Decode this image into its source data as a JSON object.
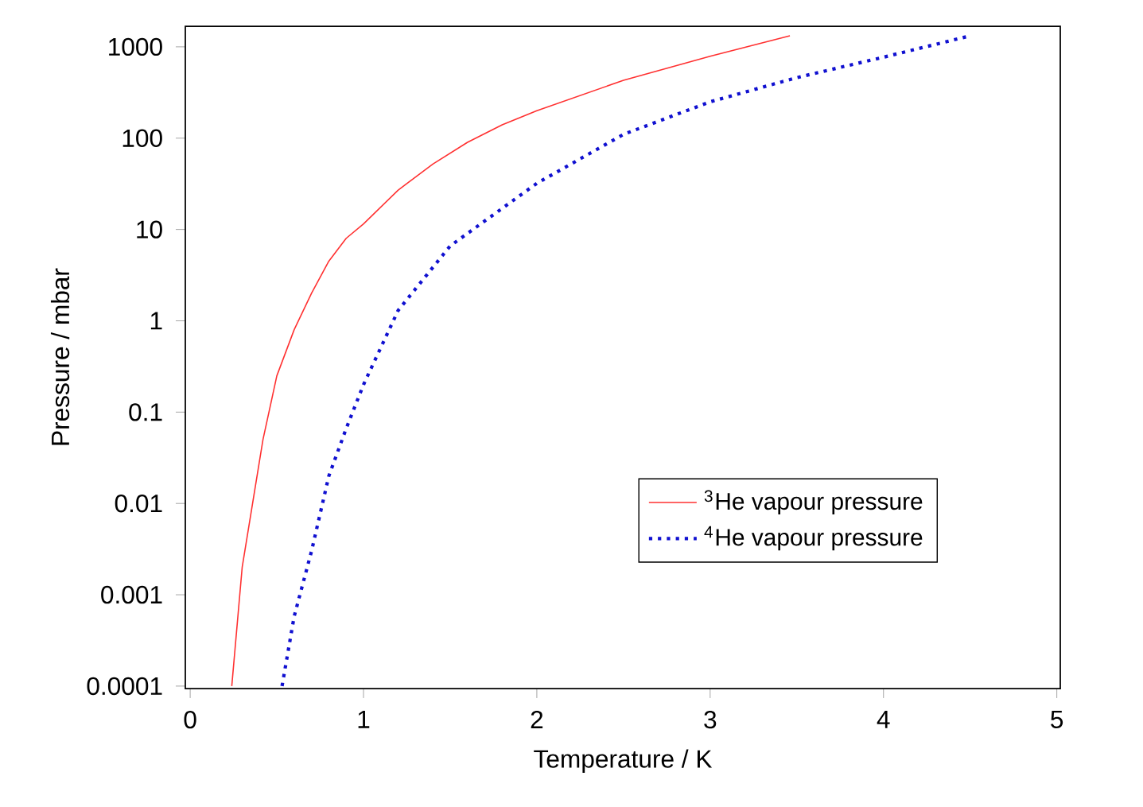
{
  "chart_data": {
    "type": "line",
    "xlabel": "Temperature / K",
    "ylabel": "Pressure / mbar",
    "log": "y",
    "legend": "bottom right",
    "xlim": [
      -0.028,
      5.02
    ],
    "ylim": [
      9.4e-05,
      1680
    ],
    "xticks": [
      0,
      1,
      2,
      3,
      4,
      5
    ],
    "yticks": [
      0.0001,
      0.001,
      0.01,
      0.1,
      1,
      10,
      100,
      1000
    ],
    "series": [
      {
        "name": "$^{3}$He vapour pressure",
        "color": "#ff3030",
        "line_style": "solid",
        "x": [
          0.24,
          0.3,
          0.36,
          0.42,
          0.5,
          0.6,
          0.7,
          0.8,
          0.9,
          1.0,
          1.2,
          1.4,
          1.6,
          1.8,
          2.0,
          2.5,
          3.0,
          3.46
        ],
        "values": [
          0.0001,
          0.002,
          0.01,
          0.05,
          0.25,
          0.8,
          2.0,
          4.5,
          8,
          11.5,
          27,
          52,
          90,
          140,
          200,
          430,
          790,
          1320
        ]
      },
      {
        "name": "$^{4}$He vapour pressure",
        "color": "#1010d0",
        "line_style": "dotted",
        "x": [
          0.53,
          0.6,
          0.7,
          0.8,
          0.9,
          1.0,
          1.2,
          1.5,
          2.0,
          2.5,
          3.0,
          3.5,
          4.0,
          4.5
        ],
        "values": [
          0.0001,
          0.00058,
          0.003,
          0.02,
          0.066,
          0.2,
          1.3,
          6.6,
          32,
          110,
          250,
          460,
          770,
          1320
        ]
      }
    ]
  }
}
